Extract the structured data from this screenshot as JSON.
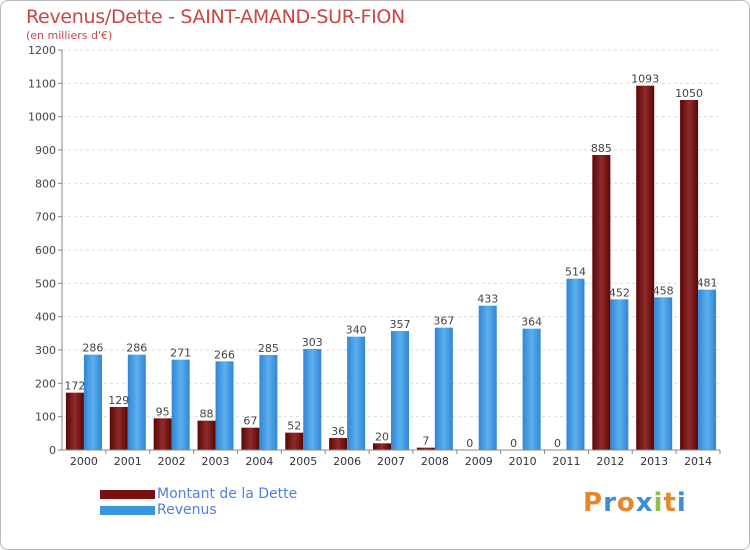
{
  "title": "Revenus/Dette - SAINT-AMAND-SUR-FION",
  "subtitle": "(en milliers d'€)",
  "logo": {
    "text": "Proxiti",
    "letters": [
      {
        "ch": "P",
        "color": "#e8862a"
      },
      {
        "ch": "r",
        "color": "#3a8fd8"
      },
      {
        "ch": "o",
        "color": "#e8862a"
      },
      {
        "ch": "x",
        "color": "#3a8fd8"
      },
      {
        "ch": "i",
        "color": "#8bc34a"
      },
      {
        "ch": "t",
        "color": "#e8862a"
      },
      {
        "ch": "i",
        "color": "#3a8fd8"
      }
    ]
  },
  "legend": [
    {
      "label": "Montant de la Dette",
      "color": "#7a1010"
    },
    {
      "label": "Revenus",
      "color": "#3a95e0"
    }
  ],
  "chart_data": {
    "type": "bar",
    "categories": [
      "2000",
      "2001",
      "2002",
      "2003",
      "2004",
      "2005",
      "2006",
      "2007",
      "2008",
      "2009",
      "2010",
      "2011",
      "2012",
      "2013",
      "2014"
    ],
    "series": [
      {
        "name": "Montant de la Dette",
        "color": "#7a1010",
        "values": [
          172,
          129,
          95,
          88,
          67,
          52,
          36,
          20,
          7,
          0,
          0,
          0,
          885,
          1093,
          1050
        ],
        "labels": [
          "172",
          "129",
          "95",
          "88",
          "67",
          "52",
          "36",
          "20",
          "7",
          "0",
          "0",
          "0",
          "885",
          "1093",
          "1050"
        ]
      },
      {
        "name": "Revenus",
        "color": "#3a95e0",
        "values": [
          286,
          286,
          271,
          266,
          285,
          303,
          340,
          357,
          367,
          433,
          364,
          514,
          452,
          458,
          481
        ],
        "labels": [
          "286",
          "286",
          "271",
          "266",
          "285",
          "303",
          "340",
          "357",
          "367",
          "433",
          "364",
          "514",
          "452",
          "458",
          "481"
        ]
      }
    ],
    "ylim": [
      0,
      1200
    ],
    "yticks": [
      0,
      100,
      200,
      300,
      400,
      500,
      600,
      700,
      800,
      900,
      1000,
      1100,
      1200
    ],
    "grid": true,
    "legend_position": "bottom-left"
  }
}
